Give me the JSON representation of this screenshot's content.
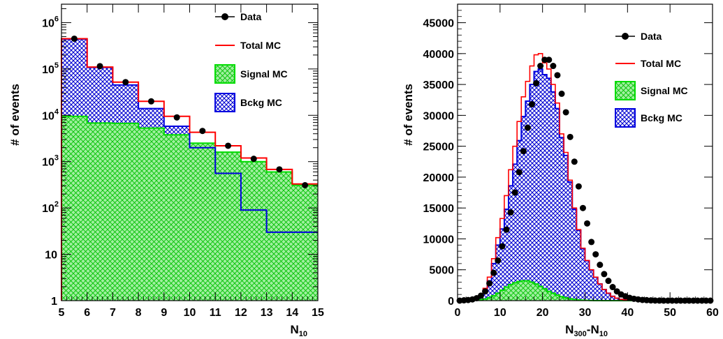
{
  "chart_data": [
    {
      "type": "histogram",
      "yscale": "log",
      "xlim": [
        5,
        15
      ],
      "ylim": [
        1,
        2500000
      ],
      "xlabel_main": "N",
      "xlabel_sub": "10",
      "ylabel": "# of events",
      "xticks": [
        "5",
        "6",
        "7",
        "8",
        "9",
        "10",
        "11",
        "12",
        "13",
        "14",
        "15"
      ],
      "ytick_labels": [
        {
          "value": 1,
          "base": "1",
          "exp": ""
        },
        {
          "value": 10,
          "base": "10",
          "exp": ""
        },
        {
          "value": 100,
          "base": "10",
          "exp": "2"
        },
        {
          "value": 1000,
          "base": "10",
          "exp": "3"
        },
        {
          "value": 10000,
          "base": "10",
          "exp": "4"
        },
        {
          "value": 100000,
          "base": "10",
          "exp": "5"
        },
        {
          "value": 1000000,
          "base": "10",
          "exp": "6"
        }
      ],
      "bin_edges": [
        5,
        6,
        7,
        8,
        9,
        10,
        11,
        12,
        13,
        14,
        15
      ],
      "series": [
        {
          "name": "Data",
          "kind": "points",
          "x": [
            5.5,
            6.5,
            7.5,
            8.5,
            9.5,
            10.5,
            11.5,
            12.5,
            13.5,
            14.5
          ],
          "values": [
            450000,
            115000,
            52000,
            20000,
            9000,
            4600,
            2200,
            1150,
            680,
            310
          ]
        },
        {
          "name": "Total MC",
          "kind": "line",
          "values": [
            450000,
            110000,
            52000,
            20000,
            9500,
            4300,
            2200,
            1200,
            680,
            330
          ]
        },
        {
          "name": "Signal MC",
          "kind": "fill",
          "values": [
            9500,
            6800,
            6700,
            5300,
            3800,
            2500,
            1600,
            1000,
            600,
            310
          ]
        },
        {
          "name": "Bckg MC",
          "kind": "fill",
          "values": [
            440000,
            108000,
            45000,
            14000,
            5800,
            2000,
            560,
            90,
            30,
            30
          ]
        }
      ],
      "legend": [
        "Data",
        "Total MC",
        "Signal MC",
        "Bckg MC"
      ]
    },
    {
      "type": "histogram",
      "yscale": "linear",
      "xlim": [
        0,
        60
      ],
      "ylim": [
        0,
        48000
      ],
      "xlabel_main": "N",
      "xlabel_sub": "300",
      "xlabel_mid": "-N",
      "xlabel_sub2": "10",
      "ylabel": "# of events",
      "xticks": [
        "0",
        "10",
        "20",
        "30",
        "40",
        "50",
        "60"
      ],
      "yticks": [
        "0",
        "5000",
        "10000",
        "15000",
        "20000",
        "25000",
        "30000",
        "35000",
        "40000",
        "45000"
      ],
      "bin_edges_start": 0,
      "bin_width": 1,
      "series": [
        {
          "name": "Data",
          "kind": "points",
          "x": [
            0.5,
            1.5,
            2.5,
            3.5,
            4.5,
            5.5,
            6.5,
            7.5,
            8.5,
            9.5,
            10.5,
            11.5,
            12.5,
            13.5,
            14.5,
            15.5,
            16.5,
            17.5,
            18.5,
            19.5,
            20.5,
            21.5,
            22.5,
            23.5,
            24.5,
            25.5,
            26.5,
            27.5,
            28.5,
            29.5,
            30.5,
            31.5,
            32.5,
            33.5,
            34.5,
            35.5,
            36.5,
            37.5,
            38.5,
            39.5,
            40.5,
            41.5,
            42.5,
            43.5,
            44.5,
            45.5,
            46.5,
            47.5,
            48.5,
            49.5,
            50.5,
            51.5,
            52.5,
            53.5,
            54.5,
            55.5,
            56.5,
            57.5,
            58.5,
            59.5
          ],
          "values": [
            0,
            50,
            100,
            200,
            400,
            800,
            1500,
            2800,
            4500,
            6500,
            8800,
            11500,
            14300,
            17500,
            20800,
            24200,
            28000,
            31800,
            35200,
            38000,
            39000,
            39000,
            38000,
            36500,
            33500,
            30500,
            26500,
            22500,
            18500,
            15000,
            12500,
            9500,
            7500,
            5800,
            4300,
            3200,
            2200,
            1500,
            1000,
            700,
            450,
            300,
            200,
            120,
            80,
            40,
            20,
            10,
            0,
            0,
            0,
            0,
            0,
            0,
            0,
            0,
            0,
            0,
            0,
            0
          ]
        },
        {
          "name": "Total MC",
          "kind": "line",
          "values": [
            0,
            50,
            100,
            200,
            400,
            900,
            2000,
            3800,
            6800,
            10200,
            13300,
            17000,
            21200,
            25000,
            29000,
            33000,
            35500,
            38000,
            39800,
            40000,
            38500,
            37500,
            35000,
            32000,
            27000,
            24000,
            19500,
            15000,
            11500,
            8500,
            6500,
            5000,
            3800,
            2700,
            1800,
            1200,
            700,
            400,
            200,
            120,
            80,
            50,
            30,
            20,
            10,
            5,
            0,
            0,
            0,
            0,
            0,
            0,
            0,
            0,
            0,
            0,
            0,
            0,
            0,
            0
          ]
        },
        {
          "name": "Signal MC",
          "kind": "fill",
          "values": [
            0,
            0,
            20,
            40,
            80,
            150,
            250,
            500,
            800,
            1200,
            1700,
            2200,
            2600,
            2900,
            3100,
            3200,
            3200,
            3000,
            2700,
            2300,
            1900,
            1500,
            1200,
            900,
            650,
            450,
            300,
            200,
            130,
            80,
            50,
            30,
            20,
            10,
            5,
            0,
            0,
            0,
            0,
            0,
            0,
            0,
            0,
            0,
            0,
            0,
            0,
            0,
            0,
            0,
            0,
            0,
            0,
            0,
            0,
            0,
            0,
            0,
            0,
            0
          ]
        },
        {
          "name": "Bckg MC",
          "kind": "fill",
          "values": [
            0,
            50,
            80,
            150,
            320,
            750,
            1700,
            3200,
            6000,
            9000,
            11600,
            14800,
            18600,
            22100,
            25900,
            29800,
            32300,
            35000,
            37100,
            37500,
            36600,
            36000,
            33800,
            31100,
            26400,
            23500,
            19200,
            14800,
            11400,
            8400,
            6450,
            4970,
            3780,
            2690,
            1795,
            1200,
            700,
            400,
            200,
            120,
            80,
            50,
            30,
            20,
            10,
            5,
            0,
            0,
            0,
            0,
            0,
            0,
            0,
            0,
            0,
            0,
            0,
            0,
            0,
            0
          ]
        }
      ],
      "legend": [
        "Data",
        "Total MC",
        "Signal MC",
        "Bckg MC"
      ]
    }
  ],
  "colors": {
    "data": "#000000",
    "total_mc": "#ff0000",
    "signal_mc": "#00dd00",
    "bckg_mc": "#0000e0",
    "frame": "#000000"
  }
}
